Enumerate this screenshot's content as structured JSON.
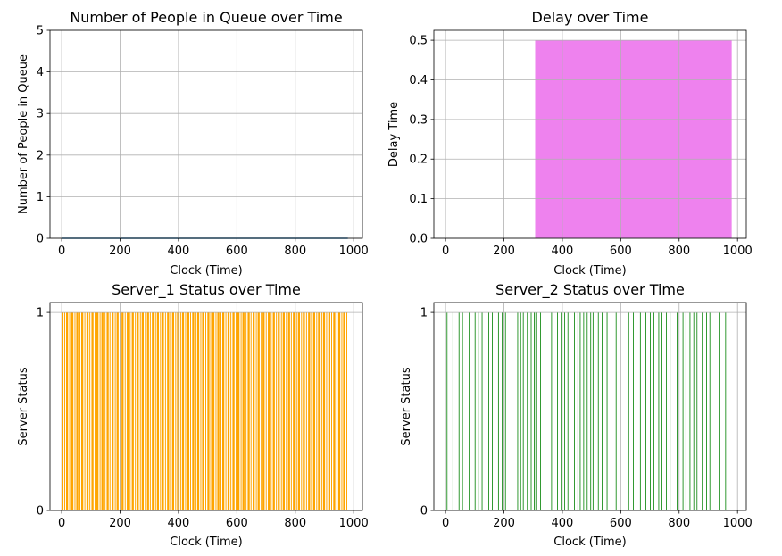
{
  "chart_data": [
    {
      "type": "line",
      "title": "Number of People in Queue over Time",
      "xlabel": "Clock (Time)",
      "ylabel": "Number of People in Queue",
      "xlim": [
        -40,
        1030
      ],
      "ylim": [
        0,
        5
      ],
      "xticks": [
        0,
        200,
        400,
        600,
        800,
        1000
      ],
      "yticks": [
        0,
        1,
        2,
        3,
        4,
        5
      ],
      "grid": true,
      "color": "#1f77b4",
      "series": [
        {
          "x": [
            0,
            980
          ],
          "y": [
            0,
            0
          ]
        }
      ]
    },
    {
      "type": "area",
      "title": "Delay over Time",
      "xlabel": "Clock (Time)",
      "ylabel": "Delay Time",
      "xlim": [
        -40,
        1030
      ],
      "ylim": [
        0,
        0.525
      ],
      "xticks": [
        0,
        200,
        400,
        600,
        800,
        1000
      ],
      "yticks": [
        0.0,
        0.1,
        0.2,
        0.3,
        0.4,
        0.5
      ],
      "ytick_labels": [
        "0.0",
        "0.1",
        "0.2",
        "0.3",
        "0.4",
        "0.5"
      ],
      "grid": true,
      "color": "#ee82ee",
      "series": [
        {
          "x": [
            307,
            980
          ],
          "y": [
            0.5,
            0.5
          ]
        }
      ]
    },
    {
      "type": "bar",
      "title": "Server_1 Status over Time",
      "xlabel": "Clock (Time)",
      "ylabel": "Server Status",
      "xlim": [
        -40,
        1030
      ],
      "ylim": [
        0,
        1.05
      ],
      "xticks": [
        0,
        200,
        400,
        600,
        800,
        1000
      ],
      "yticks": [
        0,
        1
      ],
      "grid": true,
      "color": "#ffa500",
      "status_on": [
        [
          2,
          6
        ],
        [
          9,
          12
        ],
        [
          15,
          22
        ],
        [
          26,
          29
        ],
        [
          33,
          40
        ],
        [
          44,
          47
        ],
        [
          50,
          57
        ],
        [
          61,
          64
        ],
        [
          67,
          74
        ],
        [
          78,
          81
        ],
        [
          85,
          92
        ],
        [
          95,
          98
        ],
        [
          102,
          109
        ],
        [
          113,
          116
        ],
        [
          119,
          126
        ],
        [
          130,
          133
        ],
        [
          136,
          143
        ],
        [
          147,
          150
        ],
        [
          154,
          161
        ],
        [
          164,
          167
        ],
        [
          171,
          178
        ],
        [
          182,
          185
        ],
        [
          188,
          195
        ],
        [
          199,
          202
        ],
        [
          205,
          212
        ],
        [
          216,
          219
        ],
        [
          223,
          230
        ],
        [
          233,
          236
        ],
        [
          240,
          247
        ],
        [
          251,
          254
        ],
        [
          257,
          264
        ],
        [
          268,
          271
        ],
        [
          274,
          281
        ],
        [
          285,
          288
        ],
        [
          292,
          299
        ],
        [
          302,
          305
        ],
        [
          309,
          316
        ],
        [
          320,
          323
        ],
        [
          326,
          333
        ],
        [
          337,
          340
        ],
        [
          343,
          350
        ],
        [
          354,
          357
        ],
        [
          361,
          368
        ],
        [
          371,
          374
        ],
        [
          378,
          385
        ],
        [
          389,
          392
        ],
        [
          395,
          402
        ],
        [
          406,
          409
        ],
        [
          412,
          419
        ],
        [
          423,
          426
        ],
        [
          430,
          437
        ],
        [
          440,
          443
        ],
        [
          447,
          454
        ],
        [
          458,
          461
        ],
        [
          464,
          471
        ],
        [
          475,
          478
        ],
        [
          481,
          488
        ],
        [
          492,
          495
        ],
        [
          499,
          506
        ],
        [
          509,
          512
        ],
        [
          516,
          523
        ],
        [
          527,
          530
        ],
        [
          533,
          540
        ],
        [
          544,
          547
        ],
        [
          550,
          557
        ],
        [
          561,
          564
        ],
        [
          568,
          575
        ],
        [
          578,
          581
        ],
        [
          585,
          592
        ],
        [
          596,
          599
        ],
        [
          602,
          609
        ],
        [
          613,
          616
        ],
        [
          619,
          626
        ],
        [
          630,
          633
        ],
        [
          637,
          644
        ],
        [
          647,
          650
        ],
        [
          654,
          661
        ],
        [
          665,
          668
        ],
        [
          671,
          678
        ],
        [
          682,
          685
        ],
        [
          688,
          695
        ],
        [
          699,
          702
        ],
        [
          706,
          713
        ],
        [
          716,
          719
        ],
        [
          723,
          730
        ],
        [
          734,
          737
        ],
        [
          740,
          747
        ],
        [
          751,
          754
        ],
        [
          757,
          764
        ],
        [
          768,
          771
        ],
        [
          775,
          782
        ],
        [
          785,
          788
        ],
        [
          792,
          799
        ],
        [
          803,
          806
        ],
        [
          809,
          816
        ],
        [
          820,
          823
        ],
        [
          826,
          833
        ],
        [
          837,
          840
        ],
        [
          844,
          851
        ],
        [
          854,
          857
        ],
        [
          861,
          868
        ],
        [
          872,
          875
        ],
        [
          878,
          885
        ],
        [
          889,
          892
        ],
        [
          895,
          902
        ],
        [
          906,
          909
        ],
        [
          913,
          920
        ],
        [
          923,
          926
        ],
        [
          930,
          937
        ],
        [
          941,
          944
        ],
        [
          947,
          954
        ],
        [
          958,
          961
        ],
        [
          964,
          971
        ],
        [
          975,
          978
        ]
      ]
    },
    {
      "type": "bar",
      "title": "Server_2 Status over Time",
      "xlabel": "Clock (Time)",
      "ylabel": "Server Status",
      "xlim": [
        -40,
        1030
      ],
      "ylim": [
        0,
        1.05
      ],
      "xticks": [
        0,
        200,
        400,
        600,
        800,
        1000
      ],
      "yticks": [
        0,
        1
      ],
      "grid": true,
      "color": "#008000",
      "status_on": [
        [
          4,
          6
        ],
        [
          24,
          26
        ],
        [
          45,
          47
        ],
        [
          57,
          59
        ],
        [
          80,
          82
        ],
        [
          100,
          102
        ],
        [
          111,
          113
        ],
        [
          124,
          126
        ],
        [
          147,
          149
        ],
        [
          159,
          161
        ],
        [
          180,
          182
        ],
        [
          193,
          195
        ],
        [
          204,
          206
        ],
        [
          246,
          248
        ],
        [
          256,
          258
        ],
        [
          265,
          267
        ],
        [
          279,
          281
        ],
        [
          292,
          294
        ],
        [
          303,
          305
        ],
        [
          308,
          310
        ],
        [
          324,
          326
        ],
        [
          362,
          364
        ],
        [
          382,
          384
        ],
        [
          395,
          397
        ],
        [
          407,
          409
        ],
        [
          418,
          420
        ],
        [
          425,
          427
        ],
        [
          440,
          442
        ],
        [
          452,
          454
        ],
        [
          460,
          462
        ],
        [
          472,
          474
        ],
        [
          484,
          486
        ],
        [
          496,
          498
        ],
        [
          504,
          506
        ],
        [
          522,
          524
        ],
        [
          535,
          537
        ],
        [
          552,
          554
        ],
        [
          583,
          585
        ],
        [
          596,
          598
        ],
        [
          626,
          628
        ],
        [
          642,
          644
        ],
        [
          666,
          668
        ],
        [
          685,
          687
        ],
        [
          700,
          702
        ],
        [
          712,
          714
        ],
        [
          729,
          731
        ],
        [
          740,
          742
        ],
        [
          755,
          757
        ],
        [
          768,
          770
        ],
        [
          792,
          794
        ],
        [
          812,
          814
        ],
        [
          822,
          824
        ],
        [
          836,
          838
        ],
        [
          849,
          851
        ],
        [
          860,
          862
        ],
        [
          878,
          880
        ],
        [
          893,
          895
        ],
        [
          904,
          906
        ],
        [
          936,
          938
        ],
        [
          958,
          960
        ]
      ]
    }
  ]
}
